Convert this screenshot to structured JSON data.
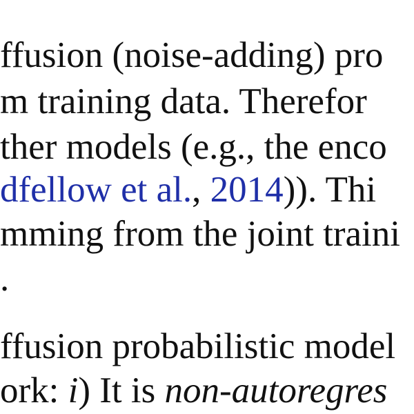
{
  "text": {
    "line1": "ffusion (noise-adding) pro",
    "line2": "m training data.  Therefor",
    "line3": "ther models (e.g., the enco",
    "line4": {
      "cite_text": "dfellow et al.",
      "sep": ", ",
      "cite_year": "2014",
      "rest": ")).  Thi"
    },
    "line5": "mming from the joint traini",
    "line6": ".",
    "line7": "ffusion probabilistic model",
    "line8": {
      "before": "ork: ",
      "italic_i": "i",
      "middle": ") It is ",
      "italic_term": "non-autoregres"
    }
  },
  "colors": {
    "text": "#111111",
    "citation": "#1f2fa8",
    "background": "#ffffff"
  }
}
